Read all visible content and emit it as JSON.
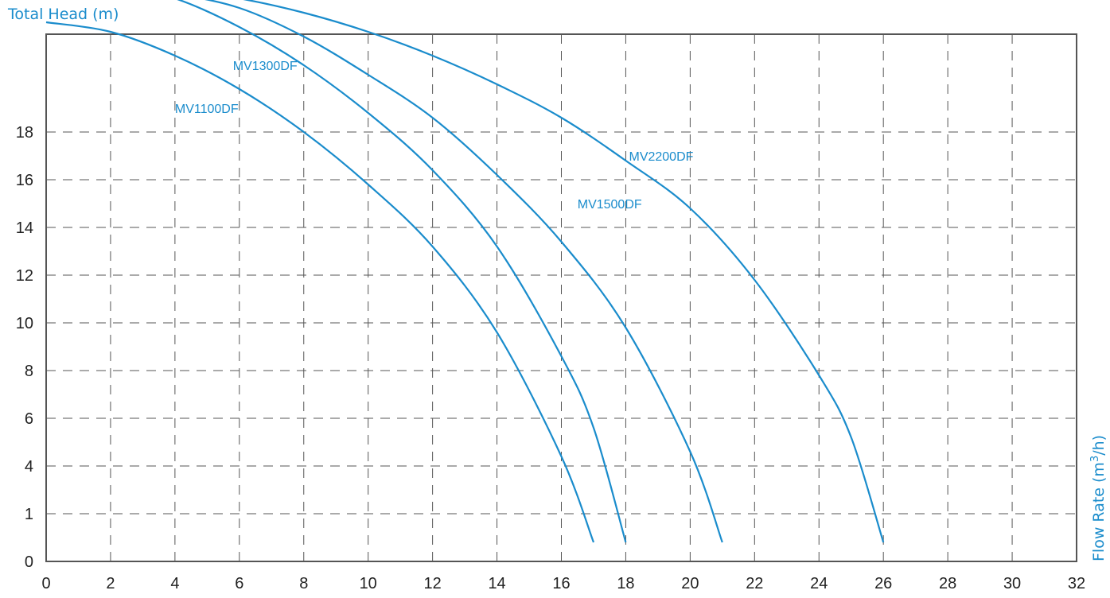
{
  "colors": {
    "curve": "#1a8ccc",
    "axis_title": "#1a8ccc",
    "frame": "#555555",
    "grid": "#555555",
    "tick_text": "#222222"
  },
  "chart_data": {
    "type": "line",
    "title": "",
    "ylabel": "Total Head (m)",
    "xlabel_prefix": "Flow Rate (m",
    "xlabel_sup": "3",
    "xlabel_suffix": "/h)",
    "xlim": [
      0,
      32
    ],
    "x_ticks": [
      "0",
      "2",
      "4",
      "6",
      "8",
      "10",
      "12",
      "14",
      "16",
      "18",
      "20",
      "22",
      "24",
      "26",
      "28",
      "30",
      "32"
    ],
    "y_ticks": [
      "0",
      "1",
      "4",
      "6",
      "8",
      "10",
      "12",
      "14",
      "16",
      "18"
    ],
    "y_tick_note": "printed tick labels are non-uniform; gridlines equally spaced",
    "grid": true,
    "series": [
      {
        "name": "MV1100DF",
        "label_near": [
          4.0,
          9.4
        ],
        "points": [
          [
            0,
            11.3
          ],
          [
            2,
            11.1
          ],
          [
            4,
            10.6
          ],
          [
            6,
            9.9
          ],
          [
            8,
            9.0
          ],
          [
            10,
            7.9
          ],
          [
            12,
            6.6
          ],
          [
            14,
            4.8
          ],
          [
            16,
            2.2
          ],
          [
            17,
            0.4
          ]
        ]
      },
      {
        "name": "MV1300DF",
        "label_near": [
          5.8,
          10.3
        ],
        "points": [
          [
            0,
            12.2
          ],
          [
            2,
            12.1
          ],
          [
            4,
            11.8
          ],
          [
            6,
            11.2
          ],
          [
            8,
            10.4
          ],
          [
            10,
            9.4
          ],
          [
            12,
            8.2
          ],
          [
            14,
            6.6
          ],
          [
            16,
            4.3
          ],
          [
            17,
            2.8
          ],
          [
            18,
            0.4
          ]
        ]
      },
      {
        "name": "MV1500DF",
        "label_near": [
          16.5,
          7.4
        ],
        "points": [
          [
            0,
            12.2
          ],
          [
            2,
            12.1
          ],
          [
            4,
            11.9
          ],
          [
            6,
            11.6
          ],
          [
            8,
            11.0
          ],
          [
            10,
            10.2
          ],
          [
            12,
            9.3
          ],
          [
            14,
            8.1
          ],
          [
            16,
            6.7
          ],
          [
            18,
            4.9
          ],
          [
            20,
            2.3
          ],
          [
            21,
            0.4
          ]
        ]
      },
      {
        "name": "MV2200DF",
        "label_near": [
          18.1,
          8.4
        ],
        "points": [
          [
            0,
            12.2
          ],
          [
            2,
            12.15
          ],
          [
            4,
            12.0
          ],
          [
            6,
            11.8
          ],
          [
            8,
            11.5
          ],
          [
            10,
            11.1
          ],
          [
            12,
            10.6
          ],
          [
            14,
            10.0
          ],
          [
            16,
            9.3
          ],
          [
            18,
            8.4
          ],
          [
            20,
            7.4
          ],
          [
            22,
            5.9
          ],
          [
            24,
            3.9
          ],
          [
            25,
            2.6
          ],
          [
            26,
            0.4
          ]
        ]
      }
    ]
  }
}
